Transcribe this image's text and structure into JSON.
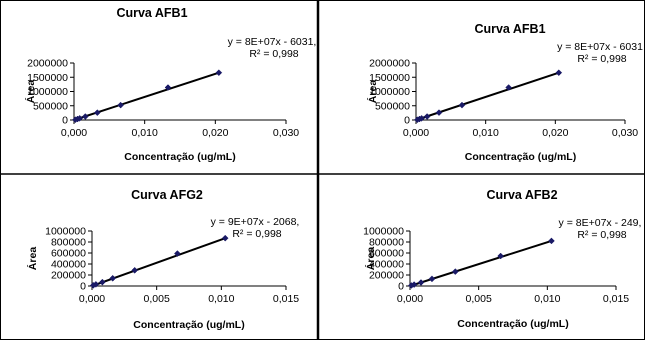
{
  "chart_data": [
    {
      "type": "scatter",
      "title": "Curva AFB1",
      "equation": "y = 8E+07x - 6031,",
      "r2": "R² = 0,998",
      "xlabel": "Concentração (ug/mL)",
      "ylabel": "Área",
      "xlim": [
        0,
        0.03
      ],
      "ylim": [
        0,
        2000000
      ],
      "x_ticks": [
        "0,000",
        "0,010",
        "0,020",
        "0,030"
      ],
      "y_ticks": [
        "0",
        "500000",
        "1000000",
        "1500000",
        "2000000"
      ],
      "series": [
        {
          "x": [
            0.0002,
            0.0005,
            0.0008,
            0.0016,
            0.0033,
            0.0066,
            0.0133,
            0.0205
          ],
          "y": [
            10000,
            34000,
            58000,
            122000,
            258000,
            522000,
            1140000,
            1660000
          ]
        }
      ],
      "trendline": {
        "x": [
          0,
          0.0205
        ],
        "y": [
          -6031,
          1660000
        ]
      },
      "line_color": "#000000",
      "marker_color": "#1a1a66"
    },
    {
      "type": "scatter",
      "title": "Curva AFB1",
      "equation": "y = 8E+07x - 6031",
      "r2": "R² = 0,998",
      "xlabel": "Concentração (ug/mL)",
      "ylabel": "Área",
      "xlim": [
        0,
        0.03
      ],
      "ylim": [
        0,
        2000000
      ],
      "x_ticks": [
        "0,000",
        "0,010",
        "0,020",
        "0,030"
      ],
      "y_ticks": [
        "0",
        "500000",
        "1000000",
        "1500000",
        "2000000"
      ],
      "series": [
        {
          "x": [
            0.0002,
            0.0005,
            0.0008,
            0.0016,
            0.0033,
            0.0066,
            0.0133,
            0.0205
          ],
          "y": [
            10000,
            34000,
            58000,
            122000,
            258000,
            522000,
            1140000,
            1660000
          ]
        }
      ],
      "trendline": {
        "x": [
          0,
          0.0205
        ],
        "y": [
          -6031,
          1660000
        ]
      },
      "line_color": "#000000",
      "marker_color": "#1a1a66"
    },
    {
      "type": "scatter",
      "title": "Curva  AFG2",
      "equation": "y = 9E+07x - 2068,",
      "r2": "R² = 0,998",
      "xlabel": "Concentração (ug/mL)",
      "ylabel": "Área",
      "xlim": [
        0,
        0.015
      ],
      "ylim": [
        0,
        1000000
      ],
      "x_ticks": [
        "0,000",
        "0,005",
        "0,010",
        "0,015"
      ],
      "y_ticks": [
        "0",
        "200000",
        "400000",
        "600000",
        "800000",
        "1000000"
      ],
      "series": [
        {
          "x": [
            0.0001,
            0.0003,
            0.0008,
            0.0016,
            0.0033,
            0.0066,
            0.0103
          ],
          "y": [
            12000,
            30000,
            70000,
            140000,
            285000,
            590000,
            870000
          ]
        }
      ],
      "trendline": {
        "x": [
          0,
          0.0103
        ],
        "y": [
          -2068,
          870000
        ]
      },
      "line_color": "#000000",
      "marker_color": "#1a1a66"
    },
    {
      "type": "scatter",
      "title": "Curva  AFB2",
      "equation": "y = 8E+07x - 249,",
      "r2": "R² = 0,998",
      "xlabel": "Concentração (ug/mL)",
      "ylabel": "Área",
      "xlim": [
        0,
        0.015
      ],
      "ylim": [
        0,
        1000000
      ],
      "x_ticks": [
        "0,000",
        "0,005",
        "0,010",
        "0,015"
      ],
      "y_ticks": [
        "0",
        "200000",
        "400000",
        "600000",
        "800000",
        "1000000"
      ],
      "series": [
        {
          "x": [
            0.0001,
            0.0003,
            0.0008,
            0.0016,
            0.0033,
            0.0066,
            0.0103
          ],
          "y": [
            10000,
            26000,
            64000,
            130000,
            262000,
            545000,
            820000
          ]
        }
      ],
      "trendline": {
        "x": [
          0,
          0.0103
        ],
        "y": [
          -249,
          820000
        ]
      },
      "line_color": "#000000",
      "marker_color": "#1a1a66"
    }
  ]
}
